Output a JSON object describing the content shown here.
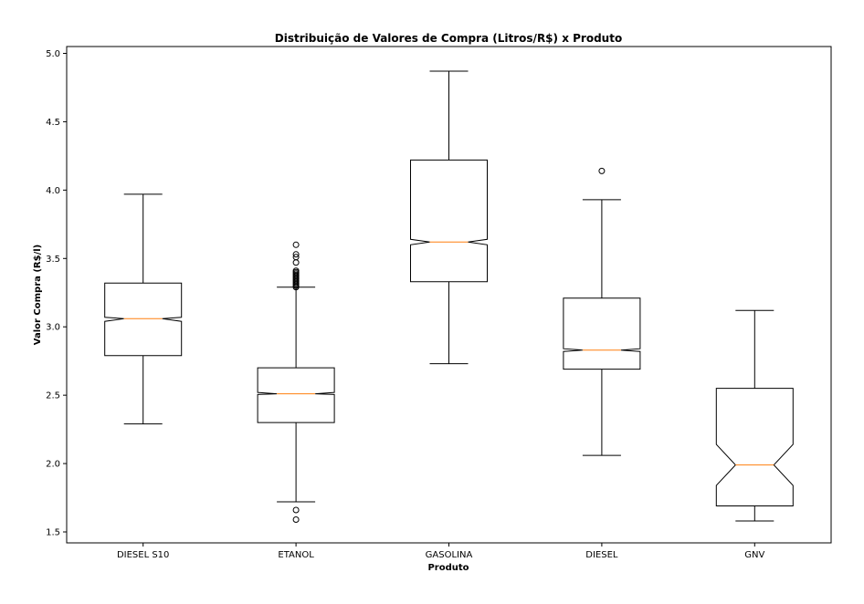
{
  "chart_data": {
    "type": "boxplot",
    "title": "Distribuição de Valores de Compra (Litros/R$) x Produto",
    "xlabel": "Produto",
    "ylabel": "Valor Compra (R$/l)",
    "ylim": [
      1.42,
      5.05
    ],
    "yticks": [
      "1.5",
      "2.0",
      "2.5",
      "3.0",
      "3.5",
      "4.0",
      "4.5",
      "5.0"
    ],
    "notched": true,
    "grid": false,
    "colors": {
      "box": "#000000",
      "median": "#ff7f0e",
      "outlier": "#000000"
    },
    "categories": [
      "DIESEL S10",
      "ETANOL",
      "GASOLINA",
      "DIESEL",
      "GNV"
    ],
    "boxes": [
      {
        "category": "DIESEL S10",
        "whislo": 2.29,
        "q1": 2.79,
        "med": 3.06,
        "q3": 3.32,
        "whishi": 3.97,
        "notch_lo": 3.04,
        "notch_hi": 3.07,
        "fliers": []
      },
      {
        "category": "ETANOL",
        "whislo": 1.72,
        "q1": 2.3,
        "med": 2.51,
        "q3": 2.7,
        "whishi": 3.29,
        "notch_lo": 2.505,
        "notch_hi": 2.52,
        "fliers": [
          1.59,
          1.66,
          3.29,
          3.3,
          3.31,
          3.32,
          3.33,
          3.34,
          3.35,
          3.36,
          3.37,
          3.38,
          3.39,
          3.4,
          3.41,
          3.47,
          3.51,
          3.53,
          3.6
        ]
      },
      {
        "category": "GASOLINA",
        "whislo": 2.73,
        "q1": 3.33,
        "med": 3.62,
        "q3": 4.22,
        "whishi": 4.87,
        "notch_lo": 3.6,
        "notch_hi": 3.64,
        "fliers": []
      },
      {
        "category": "DIESEL",
        "whislo": 2.06,
        "q1": 2.69,
        "med": 2.83,
        "q3": 3.21,
        "whishi": 3.93,
        "notch_lo": 2.82,
        "notch_hi": 2.84,
        "fliers": [
          4.14
        ]
      },
      {
        "category": "GNV",
        "whislo": 1.58,
        "q1": 1.69,
        "med": 1.99,
        "q3": 2.55,
        "whishi": 3.12,
        "notch_lo": 1.84,
        "notch_hi": 2.14,
        "fliers": []
      }
    ]
  }
}
